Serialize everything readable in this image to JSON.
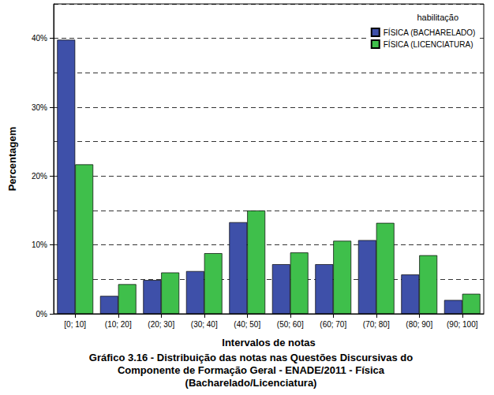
{
  "chart_data": {
    "type": "bar",
    "title": "Gráfico 3.16 - Distribuição das notas nas Questões Discursivas do\nComponente de Formação Geral - ENADE/2011 - Física\n(Bacharelado/Licenciatura)",
    "x_label": "Intervalos de notas",
    "y_label": "Percentagem",
    "legend_title": "habilitação",
    "legend": "upper right",
    "grid": true,
    "categories": [
      "[0; 10]",
      "(10; 20]",
      "(20; 30]",
      "(30; 40]",
      "(40; 50]",
      "(50; 60]",
      "(60; 70]",
      "(70; 80]",
      "(80; 90]",
      "(90; 100]"
    ],
    "series": [
      {
        "name": "FÍSICA (BACHARELADO)",
        "color": "#3e50a9",
        "values": [
          39.8,
          2.6,
          4.9,
          6.2,
          13.3,
          7.2,
          7.2,
          10.7,
          5.7,
          2.0
        ]
      },
      {
        "name": "FÍSICA (LICENCIATURA)",
        "color": "#3fbf4b",
        "values": [
          21.7,
          4.3,
          6.0,
          8.8,
          15.0,
          8.9,
          10.6,
          13.2,
          8.5,
          2.9
        ]
      }
    ],
    "ylim": [
      0,
      45
    ],
    "yticks": [
      {
        "value": 0,
        "label": "0%"
      },
      {
        "value": 10,
        "label": "10%"
      },
      {
        "value": 20,
        "label": "20%"
      },
      {
        "value": 30,
        "label": "30%"
      },
      {
        "value": 40,
        "label": "40%"
      }
    ]
  }
}
